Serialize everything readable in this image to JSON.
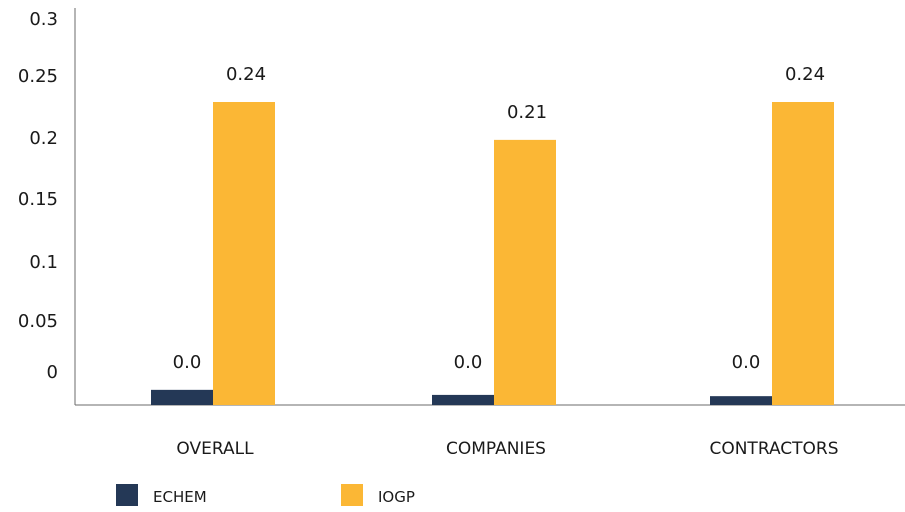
{
  "chart_data": {
    "type": "bar",
    "categories": [
      "OVERALL",
      "COMPANIES",
      "CONTRACTORS"
    ],
    "series": [
      {
        "name": "ECHEM",
        "color": "#243856",
        "values": [
          0.012,
          0.008,
          0.007
        ],
        "labels": [
          "0.0",
          "0.0",
          "0.0"
        ]
      },
      {
        "name": "IOGP",
        "color": "#FBB735",
        "values": [
          0.24,
          0.21,
          0.24
        ],
        "labels": [
          "0.24",
          "0.21",
          "0.24"
        ]
      }
    ],
    "yticks": [
      "0",
      "0.05",
      "0.1",
      "0.15",
      "0.2",
      "0.25",
      "0.3"
    ],
    "ylim": [
      0,
      0.3
    ],
    "grid": false,
    "legend": "bottom-left"
  }
}
